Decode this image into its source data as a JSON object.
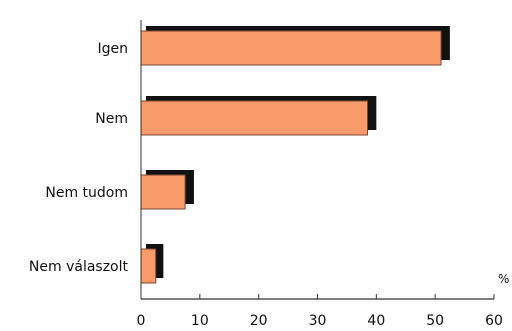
{
  "chart_data": {
    "type": "bar",
    "orientation": "horizontal",
    "title": "",
    "xlabel": "",
    "ylabel": "",
    "unit": "%",
    "categories": [
      "Igen",
      "Nem",
      "Nem tudom",
      "Nem válaszolt"
    ],
    "values": [
      51,
      38.5,
      7.5,
      2.5
    ],
    "shadow_values": [
      52.5,
      40,
      9,
      3.8
    ],
    "xlim": [
      0,
      60
    ],
    "xticks": [
      "0",
      "10",
      "20",
      "30",
      "40",
      "50",
      "60"
    ],
    "grid": false,
    "legend": "none",
    "colors": {
      "bar": "#f99a6a",
      "bar_border": "#7a4a30",
      "shadow": "#111111",
      "axis": "#333333"
    }
  }
}
